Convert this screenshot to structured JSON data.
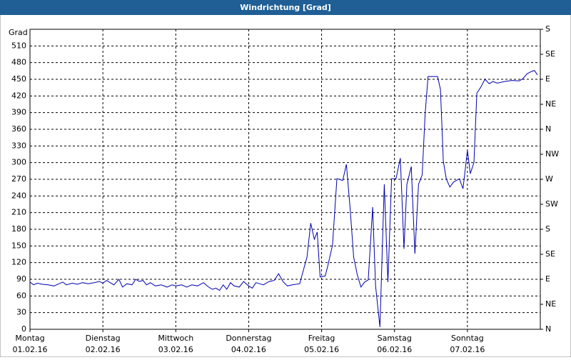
{
  "chart_data": {
    "type": "line",
    "title": "Windrichtung [Grad]",
    "y_label": "Grad",
    "xlim": [
      0,
      7
    ],
    "ylim": [
      0,
      540
    ],
    "y2lim": [
      0,
      540
    ],
    "grid": true,
    "line_color": "#0000b0",
    "xticks": [
      {
        "value": 0,
        "label": "Montag",
        "date": "01.02.16"
      },
      {
        "value": 1,
        "label": "Dienstag",
        "date": "02.02.16"
      },
      {
        "value": 2,
        "label": "Mittwoch",
        "date": "03.02.16"
      },
      {
        "value": 3,
        "label": "Donnerstag",
        "date": "04.02.16"
      },
      {
        "value": 4,
        "label": "Freitag",
        "date": "05.02.16"
      },
      {
        "value": 5,
        "label": "Samstag",
        "date": "06.02.16"
      },
      {
        "value": 6,
        "label": "Sonntag",
        "date": "07.02.16"
      }
    ],
    "yticks": [
      0,
      30,
      60,
      90,
      120,
      150,
      180,
      210,
      240,
      270,
      300,
      330,
      360,
      390,
      420,
      450,
      480,
      510
    ],
    "y2ticks": [
      {
        "value": 0,
        "label": "N"
      },
      {
        "value": 45,
        "label": "NE"
      },
      {
        "value": 90,
        "label": "E"
      },
      {
        "value": 135,
        "label": "SE"
      },
      {
        "value": 180,
        "label": "S"
      },
      {
        "value": 225,
        "label": "SW"
      },
      {
        "value": 270,
        "label": "W"
      },
      {
        "value": 315,
        "label": "NW"
      },
      {
        "value": 360,
        "label": "N"
      },
      {
        "value": 405,
        "label": "NE"
      },
      {
        "value": 450,
        "label": "E"
      },
      {
        "value": 495,
        "label": "SE"
      },
      {
        "value": 540,
        "label": "S"
      }
    ],
    "x": [
      0.0,
      0.05,
      0.1,
      0.17,
      0.25,
      0.33,
      0.4,
      0.45,
      0.5,
      0.58,
      0.65,
      0.72,
      0.8,
      0.88,
      0.95,
      1.0,
      1.05,
      1.1,
      1.15,
      1.22,
      1.27,
      1.33,
      1.4,
      1.45,
      1.5,
      1.55,
      1.6,
      1.65,
      1.72,
      1.8,
      1.88,
      1.95,
      2.0,
      2.08,
      2.15,
      2.22,
      2.3,
      2.38,
      2.45,
      2.5,
      2.55,
      2.6,
      2.65,
      2.7,
      2.75,
      2.8,
      2.87,
      2.93,
      3.0,
      3.05,
      3.1,
      3.15,
      3.2,
      3.28,
      3.35,
      3.41,
      3.47,
      3.53,
      3.6,
      3.7,
      3.8,
      3.85,
      3.9,
      3.94,
      3.98,
      4.05,
      4.09,
      4.15,
      4.21,
      4.29,
      4.34,
      4.39,
      4.44,
      4.49,
      4.54,
      4.59,
      4.64,
      4.7,
      4.74,
      4.8,
      4.86,
      4.91,
      4.96,
      5.02,
      5.08,
      5.13,
      5.17,
      5.23,
      5.28,
      5.33,
      5.38,
      5.42,
      5.46,
      5.59,
      5.63,
      5.67,
      5.71,
      5.76,
      5.81,
      5.89,
      5.94,
      6.0,
      6.04,
      6.09,
      6.13,
      6.18,
      6.24,
      6.3,
      6.35,
      6.41,
      6.51,
      6.61,
      6.71,
      6.76,
      6.82,
      6.88,
      6.92,
      6.96
    ],
    "values": [
      85,
      80,
      83,
      81,
      80,
      78,
      82,
      85,
      80,
      83,
      81,
      84,
      82,
      84,
      86,
      83,
      88,
      84,
      80,
      90,
      76,
      82,
      80,
      90,
      86,
      88,
      80,
      84,
      78,
      80,
      76,
      80,
      78,
      80,
      76,
      80,
      78,
      84,
      76,
      72,
      74,
      70,
      80,
      72,
      84,
      78,
      76,
      86,
      78,
      74,
      84,
      82,
      80,
      86,
      88,
      100,
      86,
      78,
      80,
      82,
      130,
      191,
      162,
      175,
      94,
      96,
      117,
      152,
      271,
      268,
      297,
      220,
      130,
      98,
      76,
      85,
      89,
      220,
      78,
      4,
      261,
      85,
      271,
      271,
      308,
      145,
      261,
      293,
      136,
      261,
      278,
      387,
      455,
      455,
      432,
      303,
      271,
      256,
      265,
      271,
      253,
      322,
      280,
      300,
      425,
      435,
      450,
      442,
      446,
      443,
      446,
      448,
      447,
      451,
      460,
      464,
      466,
      458
    ]
  }
}
